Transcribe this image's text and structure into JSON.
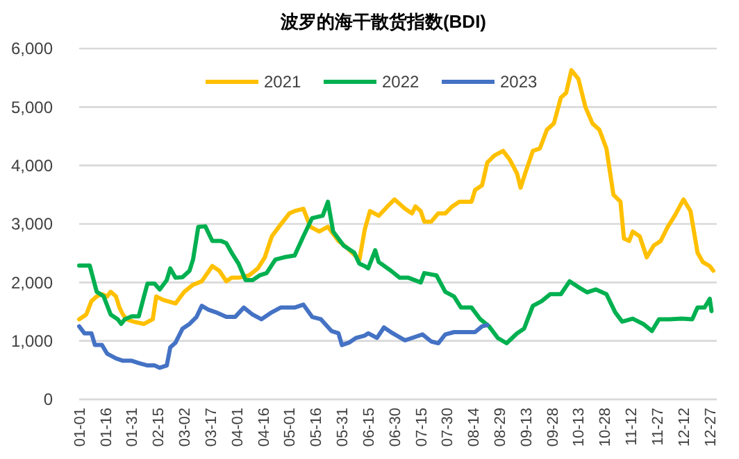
{
  "chart_data": {
    "type": "line",
    "title": "波罗的海干散货指数(BDI)",
    "legend": "top",
    "grid": "y",
    "marker": "none",
    "line_style": "solid",
    "xlim": [
      "--01-01",
      "--12-31"
    ],
    "xticks": [
      {
        "value": "--01-01",
        "label": "01-01"
      },
      {
        "value": "--01-16",
        "label": "01-16"
      },
      {
        "value": "--01-31",
        "label": "01-31"
      },
      {
        "value": "--02-15",
        "label": "02-15"
      },
      {
        "value": "--03-02",
        "label": "03-02"
      },
      {
        "value": "--03-17",
        "label": "03-17"
      },
      {
        "value": "--04-01",
        "label": "04-01"
      },
      {
        "value": "--04-16",
        "label": "04-16"
      },
      {
        "value": "--05-01",
        "label": "05-01"
      },
      {
        "value": "--05-16",
        "label": "05-16"
      },
      {
        "value": "--05-31",
        "label": "05-31"
      },
      {
        "value": "--06-15",
        "label": "06-15"
      },
      {
        "value": "--06-30",
        "label": "06-30"
      },
      {
        "value": "--07-15",
        "label": "07-15"
      },
      {
        "value": "--07-30",
        "label": "07-30"
      },
      {
        "value": "--08-14",
        "label": "08-14"
      },
      {
        "value": "--08-29",
        "label": "08-29"
      },
      {
        "value": "--09-13",
        "label": "09-13"
      },
      {
        "value": "--09-28",
        "label": "09-28"
      },
      {
        "value": "--10-13",
        "label": "10-13"
      },
      {
        "value": "--10-28",
        "label": "10-28"
      },
      {
        "value": "--11-12",
        "label": "11-12"
      },
      {
        "value": "--11-27",
        "label": "11-27"
      },
      {
        "value": "--12-12",
        "label": "12-12"
      },
      {
        "value": "--12-27",
        "label": "12-27"
      }
    ],
    "ylim": [
      0,
      6000
    ],
    "yticks": [
      {
        "value": 0,
        "label": "0"
      },
      {
        "value": 1000,
        "label": "1,000"
      },
      {
        "value": 2000,
        "label": "2,000"
      },
      {
        "value": 3000,
        "label": "3,000"
      },
      {
        "value": 4000,
        "label": "4,000"
      },
      {
        "value": 5000,
        "label": "5,000"
      },
      {
        "value": 6000,
        "label": "6,000"
      }
    ],
    "series": [
      {
        "name": "2021",
        "color": "#ffc000",
        "x": [
          "--01-01",
          "--01-05",
          "--01-08",
          "--01-11",
          "--01-14",
          "--01-17",
          "--01-19",
          "--01-22",
          "--01-24",
          "--01-26",
          "--01-28",
          "--02-01",
          "--02-07",
          "--02-12",
          "--02-14",
          "--02-18",
          "--02-25",
          "--03-02",
          "--03-07",
          "--03-12",
          "--03-18",
          "--03-22",
          "--03-26",
          "--03-29",
          "--04-02",
          "--04-08",
          "--04-13",
          "--04-17",
          "--04-21",
          "--04-26",
          "--05-01",
          "--05-04",
          "--05-09",
          "--05-13",
          "--05-18",
          "--05-23",
          "--05-29",
          "--06-03",
          "--06-10",
          "--06-13",
          "--06-16",
          "--06-21",
          "--06-26",
          "--06-30",
          "--07-06",
          "--07-10",
          "--07-12",
          "--07-15",
          "--07-17",
          "--07-21",
          "--07-25",
          "--07-29",
          "--08-02",
          "--08-06",
          "--08-13",
          "--08-15",
          "--08-19",
          "--08-22",
          "--08-26",
          "--08-31",
          "--09-04",
          "--09-08",
          "--09-10",
          "--09-13",
          "--09-17",
          "--09-21",
          "--09-25",
          "--09-29",
          "--10-03",
          "--10-06",
          "--10-09",
          "--10-13",
          "--10-17",
          "--10-21",
          "--10-25",
          "--10-29",
          "--11-02",
          "--11-06",
          "--11-08",
          "--11-11",
          "--11-13",
          "--11-17",
          "--11-21",
          "--11-25",
          "--11-29",
          "--12-03",
          "--12-07",
          "--12-12",
          "--12-16",
          "--12-20",
          "--12-23",
          "--12-27",
          "--12-29"
        ],
        "values": [
          1370,
          1450,
          1680,
          1760,
          1800,
          1760,
          1840,
          1760,
          1570,
          1450,
          1370,
          1330,
          1290,
          1370,
          1760,
          1700,
          1640,
          1840,
          1960,
          2020,
          2280,
          2200,
          2020,
          2080,
          2080,
          2120,
          2240,
          2430,
          2790,
          2990,
          3180,
          3220,
          3260,
          2950,
          2870,
          2950,
          2710,
          2590,
          2390,
          2900,
          3220,
          3140,
          3300,
          3420,
          3260,
          3180,
          3300,
          3220,
          3040,
          3040,
          3180,
          3180,
          3300,
          3380,
          3380,
          3580,
          3660,
          4050,
          4170,
          4250,
          4090,
          3860,
          3620,
          3900,
          4250,
          4290,
          4610,
          4720,
          5160,
          5240,
          5630,
          5480,
          5000,
          4720,
          4610,
          4290,
          3500,
          3380,
          2750,
          2710,
          2870,
          2790,
          2430,
          2630,
          2710,
          2950,
          3140,
          3420,
          3220,
          2510,
          2350,
          2280,
          2200
        ]
      },
      {
        "name": "2022",
        "color": "#00b050",
        "x": [
          "--01-01",
          "--01-07",
          "--01-11",
          "--01-15",
          "--01-19",
          "--01-23",
          "--01-25",
          "--01-27",
          "--01-31",
          "--02-04",
          "--02-07",
          "--02-09",
          "--02-13",
          "--02-16",
          "--02-20",
          "--02-22",
          "--02-25",
          "--03-01",
          "--03-05",
          "--03-07",
          "--03-10",
          "--03-14",
          "--03-18",
          "--03-23",
          "--03-26",
          "--03-29",
          "--04-02",
          "--04-06",
          "--04-10",
          "--04-14",
          "--04-18",
          "--04-23",
          "--04-28",
          "--05-04",
          "--05-09",
          "--05-14",
          "--05-20",
          "--05-23",
          "--05-26",
          "--05-30",
          "--06-01",
          "--06-07",
          "--06-10",
          "--06-13",
          "--06-15",
          "--06-19",
          "--06-21",
          "--06-28",
          "--07-03",
          "--07-08",
          "--07-15",
          "--07-17",
          "--07-24",
          "--07-29",
          "--08-03",
          "--08-07",
          "--08-13",
          "--08-18",
          "--08-23",
          "--08-28",
          "--09-02",
          "--09-08",
          "--09-12",
          "--09-17",
          "--09-22",
          "--09-27",
          "--10-03",
          "--10-08",
          "--10-13",
          "--10-18",
          "--10-23",
          "--10-29",
          "--11-03",
          "--11-07",
          "--11-13",
          "--11-19",
          "--11-24",
          "--11-28",
          "--12-04",
          "--12-11",
          "--12-17",
          "--12-20",
          "--12-24",
          "--12-27",
          "--12-28"
        ],
        "values": [
          2290,
          2290,
          1840,
          1760,
          1450,
          1370,
          1290,
          1370,
          1420,
          1420,
          1760,
          1980,
          1980,
          1880,
          2040,
          2240,
          2080,
          2090,
          2200,
          2390,
          2950,
          2960,
          2710,
          2710,
          2670,
          2510,
          2320,
          2040,
          2040,
          2120,
          2160,
          2390,
          2430,
          2460,
          2790,
          3100,
          3140,
          3380,
          2870,
          2710,
          2630,
          2510,
          2320,
          2280,
          2240,
          2550,
          2350,
          2200,
          2080,
          2080,
          2000,
          2160,
          2120,
          1840,
          1760,
          1570,
          1570,
          1370,
          1250,
          1050,
          960,
          1130,
          1210,
          1600,
          1680,
          1800,
          1800,
          2020,
          1920,
          1830,
          1880,
          1800,
          1490,
          1330,
          1380,
          1290,
          1170,
          1370,
          1370,
          1380,
          1370,
          1570,
          1570,
          1720,
          1510
        ]
      },
      {
        "name": "2023",
        "color": "#4472c4",
        "x": [
          "--01-01",
          "--01-04",
          "--01-08",
          "--01-10",
          "--01-14",
          "--01-17",
          "--01-22",
          "--01-26",
          "--01-31",
          "--02-04",
          "--02-09",
          "--02-13",
          "--02-16",
          "--02-20",
          "--02-22",
          "--02-25",
          "--03-01",
          "--03-05",
          "--03-09",
          "--03-12",
          "--03-16",
          "--03-20",
          "--03-26",
          "--03-31",
          "--04-05",
          "--04-10",
          "--04-15",
          "--04-21",
          "--04-26",
          "--05-04",
          "--05-09",
          "--05-14",
          "--05-19",
          "--05-25",
          "--05-29",
          "--05-31",
          "--06-04",
          "--06-08",
          "--06-13",
          "--06-15",
          "--06-20",
          "--06-24",
          "--06-29",
          "--07-06",
          "--07-12",
          "--07-16",
          "--07-21",
          "--07-25",
          "--07-29",
          "--08-03",
          "--08-09",
          "--08-15",
          "--08-19",
          "--08-22"
        ],
        "values": [
          1250,
          1130,
          1130,
          930,
          930,
          780,
          700,
          660,
          660,
          620,
          580,
          580,
          540,
          580,
          890,
          970,
          1210,
          1290,
          1410,
          1600,
          1530,
          1490,
          1410,
          1410,
          1570,
          1450,
          1370,
          1490,
          1570,
          1570,
          1620,
          1410,
          1370,
          1170,
          1130,
          930,
          970,
          1050,
          1090,
          1130,
          1050,
          1230,
          1130,
          1010,
          1070,
          1110,
          990,
          960,
          1110,
          1150,
          1150,
          1150,
          1250,
          1270
        ]
      }
    ]
  }
}
